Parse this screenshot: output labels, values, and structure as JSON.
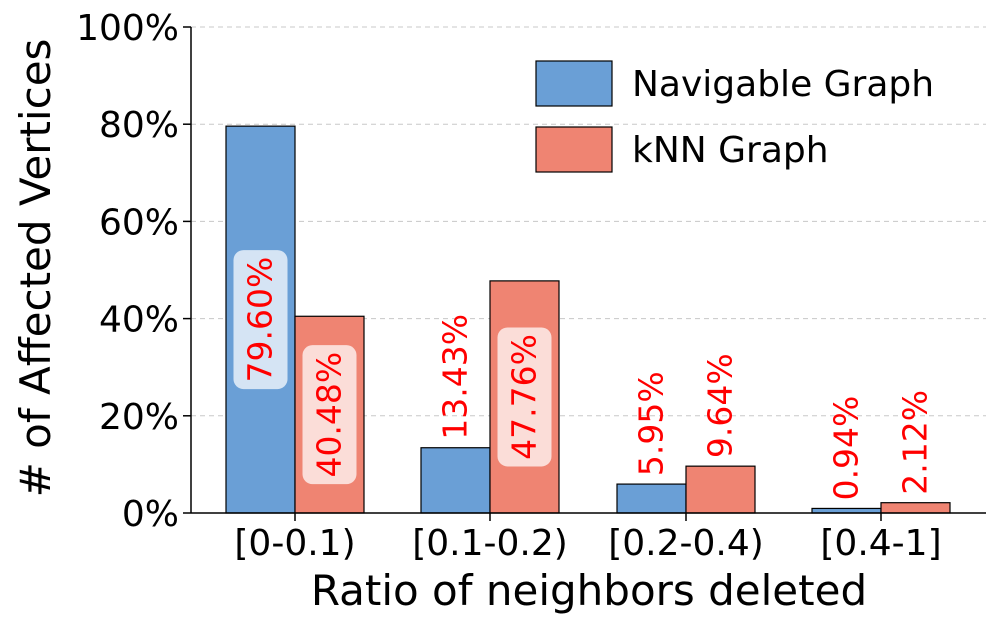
{
  "chart_data": {
    "type": "bar",
    "title": "",
    "xlabel": "Ratio of neighbors deleted",
    "ylabel": "# of Affected Vertices",
    "categories": [
      "[0-0.1)",
      "[0.1-0.2)",
      "[0.2-0.4)",
      "[0.4-1]"
    ],
    "ylim": [
      0,
      100
    ],
    "yticks": [
      {
        "value": 0,
        "label": "0%"
      },
      {
        "value": 20,
        "label": "20%"
      },
      {
        "value": 40,
        "label": "40%"
      },
      {
        "value": 60,
        "label": "60%"
      },
      {
        "value": 80,
        "label": "80%"
      },
      {
        "value": 100,
        "label": "100%"
      }
    ],
    "grid": "horizontal dashed",
    "legend_position": "top-right",
    "label_color": "#ff0000",
    "series": [
      {
        "name": "Navigable Graph",
        "color": "#6a9fd6",
        "values": [
          79.6,
          13.43,
          5.95,
          0.94
        ],
        "labels": [
          "79.60%",
          "13.43%",
          "5.95%",
          "0.94%"
        ]
      },
      {
        "name": "kNN Graph",
        "color": "#ef8472",
        "values": [
          40.48,
          47.76,
          9.64,
          2.12
        ],
        "labels": [
          "40.48%",
          "47.76%",
          "9.64%",
          "2.12%"
        ]
      }
    ]
  }
}
